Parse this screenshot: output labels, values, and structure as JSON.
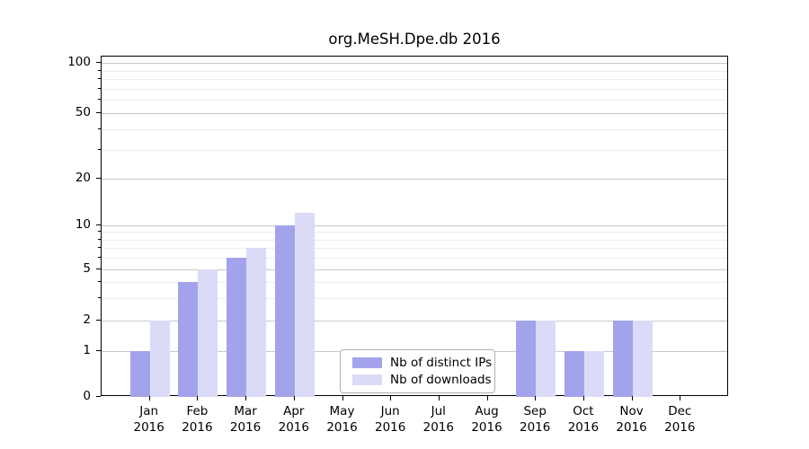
{
  "chart_data": {
    "type": "bar",
    "title": "org.MeSH.Dpe.db 2016",
    "year": "2016",
    "categories": [
      "Jan",
      "Feb",
      "Mar",
      "Apr",
      "May",
      "Jun",
      "Jul",
      "Aug",
      "Sep",
      "Oct",
      "Nov",
      "Dec"
    ],
    "series": [
      {
        "name": "Nb of distinct IPs",
        "color": "#a3a3eb",
        "values": [
          1,
          4,
          6,
          10,
          0,
          0,
          0,
          0,
          2,
          1,
          2,
          0
        ]
      },
      {
        "name": "Nb of downloads",
        "color": "#dbdbf7",
        "values": [
          2,
          5,
          7,
          12,
          0,
          0,
          0,
          0,
          2,
          1,
          2,
          0
        ]
      }
    ],
    "xlabel": "",
    "ylabel": "",
    "y_axis": {
      "scale": "log-like",
      "tick_values": [
        0,
        1,
        2,
        5,
        10,
        20,
        50,
        100
      ],
      "minor_tick_values": [
        3,
        4,
        6,
        7,
        8,
        9,
        30,
        40,
        60,
        70,
        80,
        90
      ],
      "ylim": [
        0,
        110
      ]
    },
    "grid": "on",
    "legend_position": "bottom-center-inside"
  },
  "colors": {
    "major_grid": "#c8c8c8",
    "minor_grid": "#ececec",
    "axis": "#000000",
    "background": "#ffffff"
  }
}
